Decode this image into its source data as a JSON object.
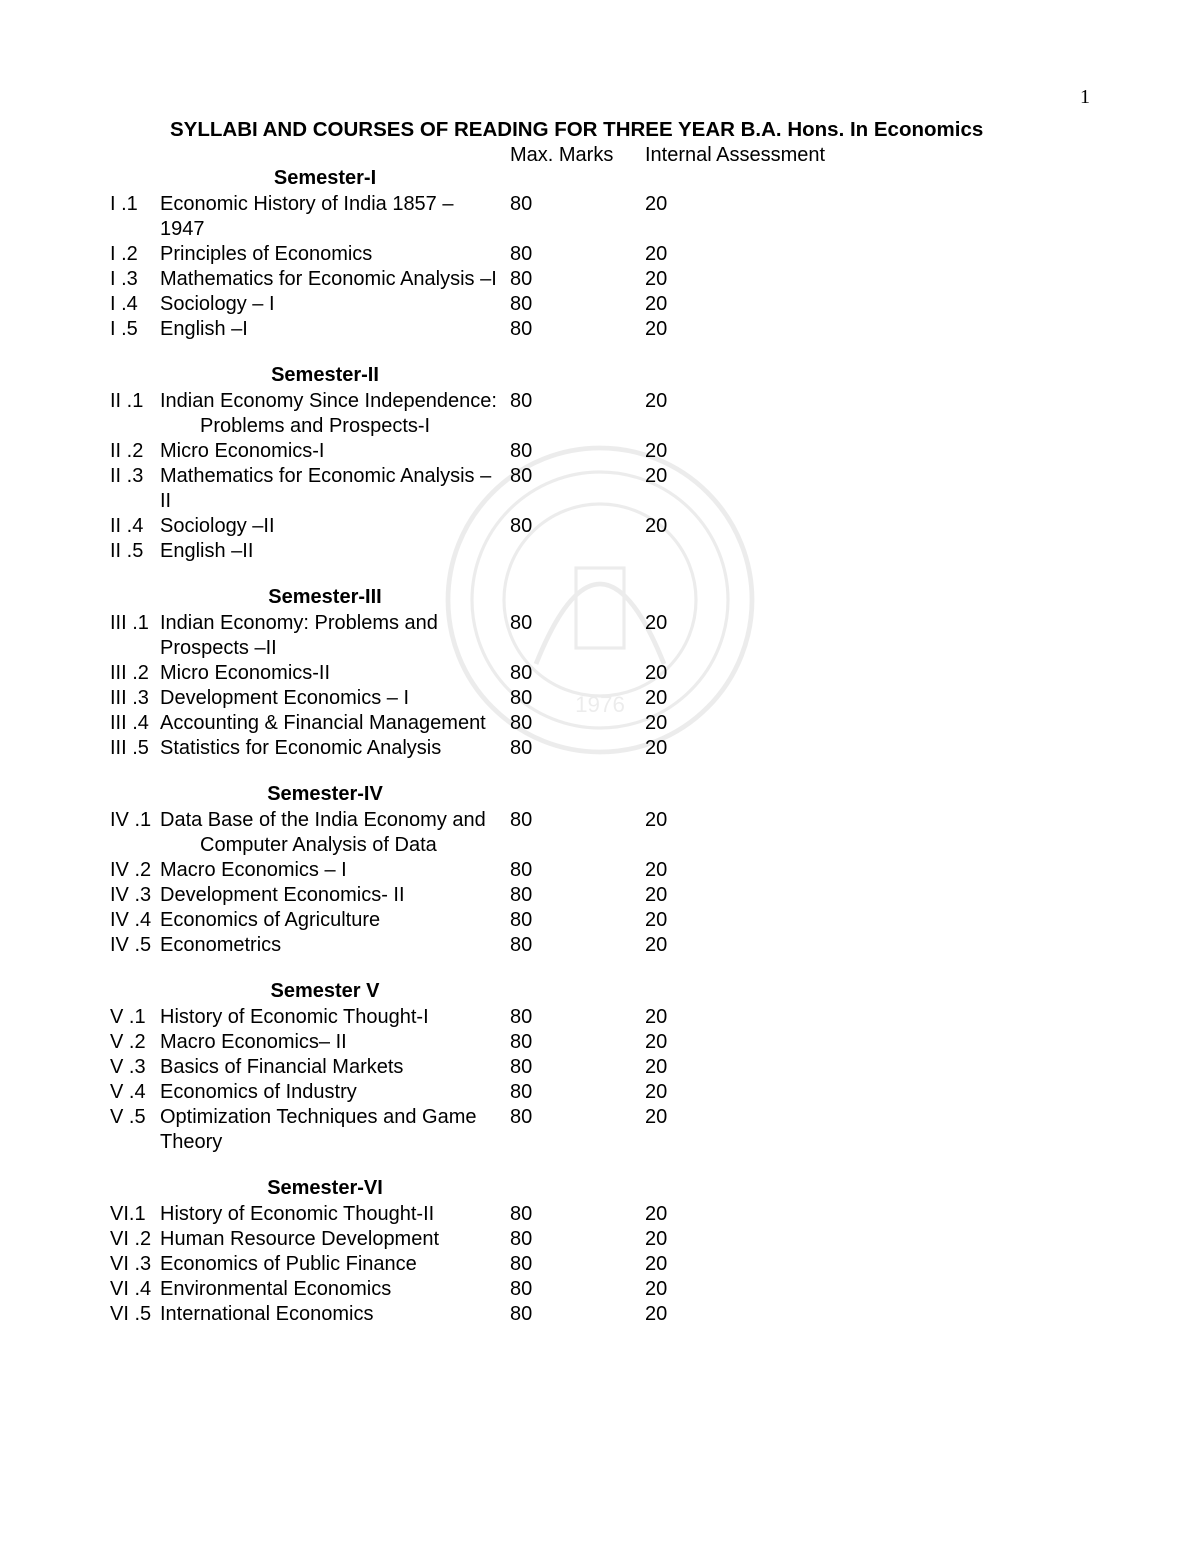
{
  "page_number": "1",
  "title": "SYLLABI AND COURSES OF READING FOR THREE YEAR B.A. Hons. In Economics",
  "column_headers": {
    "max_marks": "Max. Marks",
    "internal_assessment": "Internal Assessment"
  },
  "semesters": [
    {
      "title": "Semester-I",
      "courses": [
        {
          "code": "I .1",
          "name": "Economic History of India 1857 – 1947",
          "max": "80",
          "ia": "20"
        },
        {
          "code": "I .2",
          "name": "Principles of Economics",
          "max": "80",
          "ia": "20"
        },
        {
          "code": "I .3",
          "name": "Mathematics for Economic Analysis –I",
          "max": "80",
          "ia": "20"
        },
        {
          "code": "I .4",
          "name": "Sociology – I",
          "max": "80",
          "ia": "20"
        },
        {
          "code": "I .5",
          "name": "English –I",
          "max": "80",
          "ia": "20"
        }
      ]
    },
    {
      "title": "Semester-II",
      "courses": [
        {
          "code": "II .1",
          "name": "Indian Economy Since Independence:",
          "sub": "Problems and Prospects-I",
          "max": "80",
          "ia": "20"
        },
        {
          "code": "II .2",
          "name": "Micro Economics-I",
          "max": "80",
          "ia": "20"
        },
        {
          "code": "II .3",
          "name": "Mathematics for Economic Analysis – II",
          "max": "80",
          "ia": "20"
        },
        {
          "code": "II .4",
          "name": "Sociology –II",
          "max": "80",
          "ia": "20"
        },
        {
          "code": "II .5",
          "name": "English –II",
          "max": "",
          "ia": ""
        }
      ]
    },
    {
      "title": "Semester-III",
      "courses": [
        {
          "code": "III .1",
          "name": "Indian Economy: Problems and Prospects –II",
          "max": "80",
          "ia": "20"
        },
        {
          "code": "III .2",
          "name": "Micro Economics-II",
          "max": "80",
          "ia": "20"
        },
        {
          "code": "III .3",
          "name": "Development Economics – I",
          "max": "80",
          "ia": "20"
        },
        {
          "code": "III .4",
          "name": "Accounting & Financial Management",
          "max": "80",
          "ia": "20"
        },
        {
          "code": "III .5",
          "name": "Statistics for Economic Analysis",
          "max": "80",
          "ia": "20"
        }
      ]
    },
    {
      "title": "Semester-IV",
      "courses": [
        {
          "code": "IV .1",
          "name": "Data Base of the India Economy and",
          "sub": "Computer Analysis of Data",
          "max": "80",
          "ia": "20"
        },
        {
          "code": "IV .2",
          "name": "Macro Economics – I",
          "max": "80",
          "ia": "20"
        },
        {
          "code": "IV .3",
          "name": "Development Economics- II",
          "max": "80",
          "ia": "20"
        },
        {
          "code": "IV .4",
          "name": "Economics of Agriculture",
          "max": "80",
          "ia": "20"
        },
        {
          "code": "IV .5",
          "name": "Econometrics",
          "max": "80",
          "ia": "20"
        }
      ]
    },
    {
      "title": "Semester V",
      "courses": [
        {
          "code": "V .1",
          "name": "History of Economic Thought-I",
          "max": "80",
          "ia": "20"
        },
        {
          "code": "V .2",
          "name": "Macro Economics– II",
          "max": "80",
          "ia": "20"
        },
        {
          "code": "V .3",
          "name": "Basics of Financial Markets",
          "max": "80",
          "ia": "20"
        },
        {
          "code": "V .4",
          "name": "Economics of Industry",
          "max": "80",
          "ia": "20"
        },
        {
          "code": "V .5",
          "name": "Optimization Techniques and Game Theory",
          "max": "80",
          "ia": "20"
        }
      ]
    },
    {
      "title": "Semester-VI",
      "courses": [
        {
          "code": "VI.1",
          "name": "History of Economic Thought-II",
          "max": "80",
          "ia": "20"
        },
        {
          "code": "VI .2",
          "name": "Human Resource Development",
          "max": "80",
          "ia": "20"
        },
        {
          "code": "VI .3",
          "name": "Economics of Public Finance",
          "max": "80",
          "ia": "20"
        },
        {
          "code": "VI .4",
          "name": "Environmental Economics",
          "max": "80",
          "ia": "20"
        },
        {
          "code": "VI .5",
          "name": "International Economics",
          "max": "80",
          "ia": "20"
        }
      ]
    }
  ]
}
